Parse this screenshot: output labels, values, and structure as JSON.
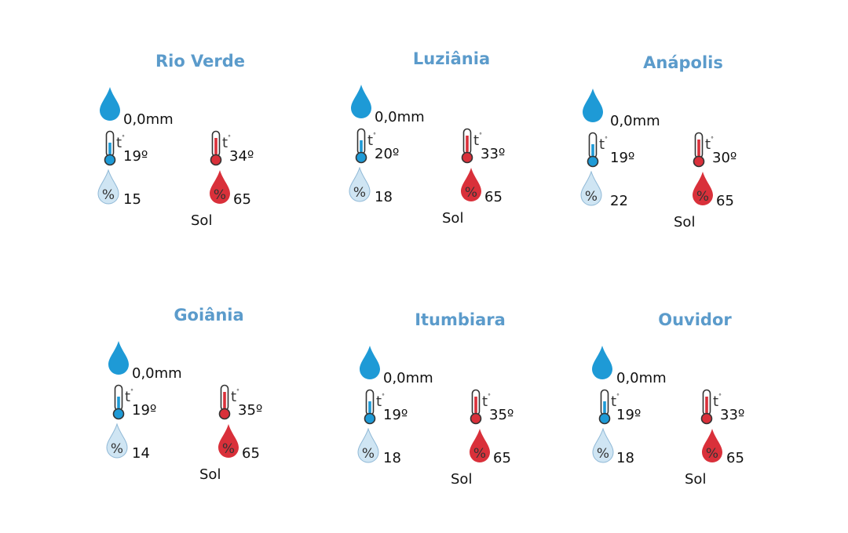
{
  "colors": {
    "title": "#5b9bcb",
    "rain": "#1e9ad6",
    "cold": "#1e9ad6",
    "hot": "#d9303a",
    "humidity_low": "#cfe5f3",
    "humidity_high": "#d9303a"
  },
  "icons": {
    "rain": "raindrop-icon",
    "min_temp": "thermometer-cold-icon",
    "max_temp": "thermometer-hot-icon",
    "min_humidity": "humidity-low-icon",
    "max_humidity": "humidity-high-icon"
  },
  "cities": [
    {
      "name": "Rio Verde",
      "rain": "0,0mm",
      "min_temp": "19º",
      "max_temp": "34º",
      "min_humidity": "15",
      "max_humidity": "65",
      "condition": "Sol"
    },
    {
      "name": "Luziânia",
      "rain": "0,0mm",
      "min_temp": "20º",
      "max_temp": "33º",
      "min_humidity": "18",
      "max_humidity": "65",
      "condition": "Sol"
    },
    {
      "name": "Anápolis",
      "rain": "0,0mm",
      "min_temp": "19º",
      "max_temp": "30º",
      "min_humidity": "22",
      "max_humidity": "65",
      "condition": "Sol"
    },
    {
      "name": "Goiânia",
      "rain": "0,0mm",
      "min_temp": "19º",
      "max_temp": "35º",
      "min_humidity": "14",
      "max_humidity": "65",
      "condition": "Sol"
    },
    {
      "name": "Itumbiara",
      "rain": "0,0mm",
      "min_temp": "19º",
      "max_temp": "35º",
      "min_humidity": "18",
      "max_humidity": "65",
      "condition": "Sol"
    },
    {
      "name": "Ouvidor",
      "rain": "0,0mm",
      "min_temp": "19º",
      "max_temp": "33º",
      "min_humidity": "18",
      "max_humidity": "65",
      "condition": "Sol"
    }
  ]
}
